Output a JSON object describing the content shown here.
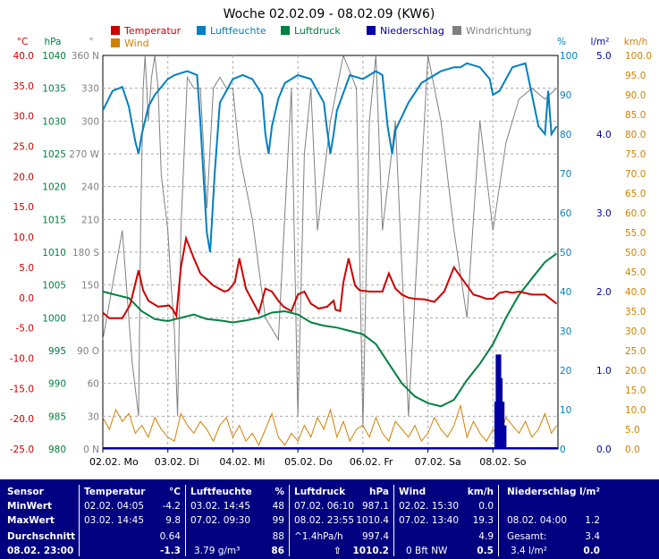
{
  "chart_data": {
    "type": "line",
    "title": "Woche 02.02.09 - 08.02.09 (KW6)",
    "x_ticks": [
      "02.02.  Mo",
      "03.02.  Di",
      "04.02.  Mi",
      "05.02.  Do",
      "06.02.  Fr",
      "07.02.  Sa",
      "08.02.  So"
    ],
    "legend": [
      {
        "key": "temp",
        "label": "Temperatur",
        "color": "#cc0000"
      },
      {
        "key": "hum",
        "label": "Luftfeuchte",
        "color": "#0080c0"
      },
      {
        "key": "press",
        "label": "Luftdruck",
        "color": "#008040"
      },
      {
        "key": "rain",
        "label": "Niederschlag",
        "color": "#0000a0"
      },
      {
        "key": "dir",
        "label": "Windrichtung",
        "color": "#808080"
      },
      {
        "key": "wind",
        "label": "Wind",
        "color": "#d08000"
      }
    ],
    "axes": {
      "temp": {
        "unit": "°C",
        "ticks": [
          "40.0",
          "35.0",
          "30.0",
          "25.0",
          "20.0",
          "15.0",
          "10.0",
          "5.0",
          "0.0",
          "-5.0",
          "-10.0",
          "-15.0",
          "-20.0",
          "-25.0"
        ],
        "range": [
          -25,
          40
        ]
      },
      "press": {
        "unit": "hPa",
        "ticks": [
          "1040",
          "1035",
          "1030",
          "1025",
          "1020",
          "1015",
          "1010",
          "1005",
          "1000",
          "995",
          "990",
          "985",
          "980"
        ],
        "range": [
          980,
          1040
        ]
      },
      "dir": {
        "unit": "°",
        "ticks": [
          "360 N",
          "330",
          "300",
          "270 W",
          "240",
          "210",
          "180 S",
          "150",
          "120",
          "90 O",
          "60",
          "30",
          "0 N"
        ],
        "range": [
          0,
          360
        ]
      },
      "hum": {
        "unit": "%",
        "ticks": [
          "100",
          "90",
          "80",
          "70",
          "60",
          "50",
          "40",
          "30",
          "20",
          "10",
          "0"
        ],
        "range": [
          0,
          100
        ]
      },
      "rain": {
        "unit": "l/m²",
        "ticks": [
          "5.0",
          "4.0",
          "3.0",
          "2.0",
          "1.0",
          "0.0"
        ],
        "range": [
          0,
          5
        ]
      },
      "wind": {
        "unit": "km/h",
        "ticks": [
          "100.0",
          "95.0",
          "90.0",
          "85.0",
          "80.0",
          "75.0",
          "70.0",
          "65.0",
          "60.0",
          "55.0",
          "50.0",
          "45.0",
          "40.0",
          "35.0",
          "30.0",
          "25.0",
          "20.0",
          "15.0",
          "10.0",
          "5.0",
          "0.0"
        ],
        "range": [
          0,
          100
        ]
      }
    },
    "series": [
      {
        "name": "Temperatur",
        "color": "#cc0000",
        "axis": "temp",
        "x": [
          0,
          0.1,
          0.3,
          0.42,
          0.55,
          0.62,
          0.7,
          0.85,
          1.02,
          1.08,
          1.13,
          1.2,
          1.28,
          1.4,
          1.5,
          1.7,
          1.87,
          1.93,
          2.03,
          2.1,
          2.2,
          2.3,
          2.4,
          2.5,
          2.6,
          2.7,
          2.78,
          2.83,
          2.9,
          3.0,
          3.1,
          3.2,
          3.32,
          3.45,
          3.55,
          3.58,
          3.65,
          3.7,
          3.78,
          3.88,
          3.95,
          4.1,
          4.2,
          4.3,
          4.35,
          4.4,
          4.5,
          4.6,
          4.7,
          4.8,
          4.95,
          5.1,
          5.25,
          5.4,
          5.5,
          5.6,
          5.7,
          5.8,
          5.9,
          6.0,
          6.1,
          6.2,
          6.3,
          6.4,
          6.6,
          6.8,
          6.98
        ],
        "y": [
          -2.5,
          -3.4,
          -3.4,
          -1.2,
          4.5,
          1.2,
          -0.5,
          -1.5,
          -1.3,
          -2.0,
          -3.0,
          5.0,
          9.8,
          6.5,
          4.0,
          2.0,
          1.0,
          1.2,
          2.5,
          6.5,
          1.5,
          -0.5,
          -2.5,
          1.5,
          1.0,
          -0.5,
          -1.5,
          -1.8,
          -2.2,
          0.5,
          1.0,
          -1.0,
          -1.8,
          -1.5,
          -0.5,
          -2.0,
          -2.2,
          2.5,
          6.5,
          2.0,
          1.2,
          1.0,
          1.0,
          1.0,
          2.5,
          4.0,
          1.5,
          0.5,
          0.0,
          -0.2,
          -0.3,
          -0.7,
          1.0,
          5.0,
          3.5,
          2.0,
          0.5,
          0.2,
          -0.2,
          -0.2,
          0.8,
          1.0,
          0.8,
          1.0,
          0.5,
          0.5,
          -1.0
        ]
      },
      {
        "name": "Luftfeuchte",
        "color": "#0080c0",
        "axis": "hum",
        "x": [
          0,
          0.15,
          0.3,
          0.4,
          0.5,
          0.55,
          0.6,
          0.7,
          0.8,
          1.0,
          1.1,
          1.3,
          1.45,
          1.5,
          1.6,
          1.65,
          1.72,
          1.8,
          1.9,
          2.0,
          2.15,
          2.3,
          2.45,
          2.5,
          2.55,
          2.6,
          2.7,
          2.8,
          3.0,
          3.2,
          3.4,
          3.45,
          3.5,
          3.55,
          3.6,
          3.8,
          4.0,
          4.2,
          4.3,
          4.38,
          4.45,
          4.5,
          4.7,
          4.9,
          5.0,
          5.2,
          5.4,
          5.5,
          5.6,
          5.8,
          5.95,
          6.0,
          6.1,
          6.3,
          6.5,
          6.6,
          6.7,
          6.8,
          6.85,
          6.9,
          6.98
        ],
        "y": [
          86,
          91,
          92,
          87,
          78,
          75,
          80,
          87,
          90,
          94,
          95,
          96,
          95,
          83,
          55,
          50,
          70,
          88,
          91,
          94,
          95,
          94,
          90,
          80,
          75,
          82,
          89,
          93,
          95,
          94,
          88,
          81,
          75,
          80,
          86,
          95,
          94,
          96,
          95,
          82,
          75,
          81,
          88,
          93,
          94,
          96,
          97,
          97,
          98,
          97,
          94,
          90,
          91,
          97,
          98,
          90,
          82,
          80,
          91,
          80,
          82
        ]
      },
      {
        "name": "Luftdruck",
        "color": "#008040",
        "axis": "press",
        "x": [
          0,
          0.2,
          0.4,
          0.6,
          0.8,
          1.0,
          1.2,
          1.4,
          1.6,
          1.8,
          2.0,
          2.2,
          2.4,
          2.6,
          2.8,
          3.0,
          3.2,
          3.4,
          3.6,
          3.8,
          4.0,
          4.2,
          4.4,
          4.6,
          4.8,
          5.0,
          5.2,
          5.4,
          5.6,
          5.8,
          6.0,
          6.2,
          6.4,
          6.6,
          6.8,
          6.98
        ],
        "y": [
          1004.0,
          1003.5,
          1003.0,
          1001.0,
          999.8,
          999.5,
          1000.0,
          1000.5,
          999.8,
          999.6,
          999.3,
          999.6,
          1000.0,
          1000.8,
          1001.0,
          1000.5,
          999.3,
          998.8,
          998.5,
          998.0,
          997.5,
          996.0,
          993.0,
          990.0,
          988.0,
          987.0,
          986.5,
          987.5,
          990.5,
          993.0,
          996.0,
          1000.0,
          1003.5,
          1006.0,
          1008.5,
          1009.8
        ]
      },
      {
        "name": "Niederschlag",
        "color": "#0000a0",
        "axis": "rain",
        "x": [
          6.0,
          6.05,
          6.07,
          6.1,
          6.12,
          6.15,
          6.18,
          6.2
        ],
        "y": [
          0.0,
          0.6,
          1.2,
          1.2,
          0.9,
          0.6,
          0.3,
          0.0
        ]
      },
      {
        "name": "Windrichtung",
        "color": "#808080",
        "axis": "dir",
        "x": [
          0,
          0.15,
          0.3,
          0.45,
          0.55,
          0.58,
          0.62,
          0.65,
          0.7,
          0.75,
          0.8,
          0.85,
          0.9,
          1.0,
          1.05,
          1.1,
          1.15,
          1.2,
          1.3,
          1.4,
          1.5,
          1.6,
          1.7,
          1.8,
          1.9,
          2.0,
          2.1,
          2.3,
          2.5,
          2.7,
          2.9,
          3.0,
          3.1,
          3.2,
          3.3,
          3.5,
          3.7,
          3.9,
          4.0,
          4.1,
          4.2,
          4.3,
          4.5,
          4.7,
          4.9,
          5.0,
          5.2,
          5.4,
          5.6,
          5.8,
          6.0,
          6.2,
          6.4,
          6.6,
          6.8,
          6.98
        ],
        "y": [
          100,
          150,
          200,
          80,
          30,
          200,
          330,
          360,
          300,
          340,
          360,
          330,
          250,
          200,
          150,
          110,
          30,
          200,
          340,
          330,
          330,
          220,
          330,
          340,
          330,
          330,
          270,
          210,
          120,
          100,
          330,
          30,
          270,
          330,
          200,
          300,
          360,
          330,
          20,
          300,
          360,
          200,
          300,
          30,
          250,
          360,
          300,
          200,
          120,
          300,
          200,
          280,
          320,
          330,
          320,
          330
        ]
      },
      {
        "name": "Wind",
        "color": "#d08000",
        "axis": "wind",
        "x": [
          0,
          0.1,
          0.2,
          0.3,
          0.4,
          0.5,
          0.6,
          0.7,
          0.8,
          0.9,
          1.0,
          1.1,
          1.2,
          1.3,
          1.4,
          1.5,
          1.6,
          1.7,
          1.8,
          1.9,
          2.0,
          2.1,
          2.2,
          2.3,
          2.4,
          2.5,
          2.6,
          2.7,
          2.8,
          2.9,
          3.0,
          3.1,
          3.2,
          3.3,
          3.4,
          3.5,
          3.6,
          3.7,
          3.8,
          3.9,
          4.0,
          4.1,
          4.2,
          4.3,
          4.4,
          4.5,
          4.6,
          4.7,
          4.8,
          4.9,
          5.0,
          5.1,
          5.2,
          5.3,
          5.4,
          5.5,
          5.6,
          5.7,
          5.8,
          5.9,
          6.0,
          6.1,
          6.2,
          6.3,
          6.4,
          6.5,
          6.6,
          6.7,
          6.8,
          6.9,
          6.98
        ],
        "y": [
          8,
          5,
          10,
          7,
          9,
          4,
          6,
          3,
          8,
          5,
          3,
          2,
          9,
          6,
          4,
          7,
          5,
          2,
          6,
          8,
          3,
          6,
          2,
          4,
          1,
          5,
          9,
          3,
          1,
          4,
          2,
          6,
          3,
          8,
          5,
          10,
          3,
          7,
          2,
          5,
          6,
          3,
          8,
          4,
          2,
          7,
          5,
          3,
          6,
          2,
          4,
          8,
          5,
          3,
          6,
          11,
          3,
          7,
          4,
          2,
          5,
          3,
          8,
          6,
          4,
          7,
          3,
          5,
          9,
          4,
          6
        ]
      }
    ]
  },
  "stats": {
    "sensor": {
      "header": "Sensor",
      "min": "MinWert",
      "max": "MaxWert",
      "avg": "Durchschnitt",
      "now": "08.02. 23:00"
    },
    "temp": {
      "header": "Temperatur",
      "unit": "°C",
      "min_time": "02.02. 04:05",
      "min_val": "-4.2",
      "max_time": "03.02. 14:45",
      "max_val": "9.8",
      "avg": "0.64",
      "now": "-1.3"
    },
    "hum": {
      "header": "Luftfeuchte",
      "unit": "%",
      "min_time": "03.02. 14:45",
      "min_val": "48",
      "max_time": "07.02. 09:30",
      "max_val": "99",
      "avg": "88",
      "extra": "3.79 g/m³",
      "now": "86"
    },
    "press": {
      "header": "Luftdruck",
      "unit": "hPa",
      "min_time": "07.02. 06:10",
      "min_val": "987.1",
      "max_time": "08.02. 23:55",
      "max_val": "1010.4",
      "avg_label": "^1.4hPa/h",
      "avg": "997.4",
      "now": "1010.2"
    },
    "wind": {
      "header": "Wind",
      "unit": "km/h",
      "min_time": "02.02. 15:30",
      "min_val": "0.0",
      "max_time": "07.02. 13:40",
      "max_val": "19.3",
      "avg": "4.9",
      "extra": "0 Bft NW",
      "now": "0.5"
    },
    "rain": {
      "header": "Niederschlag",
      "unit": "l/m²",
      "max_time": "08.02. 04:00",
      "max_val": "1.2",
      "total_label": "Gesamt:",
      "total": "3.4",
      "extra": "3.4 l/m²",
      "now": "0.0"
    }
  }
}
